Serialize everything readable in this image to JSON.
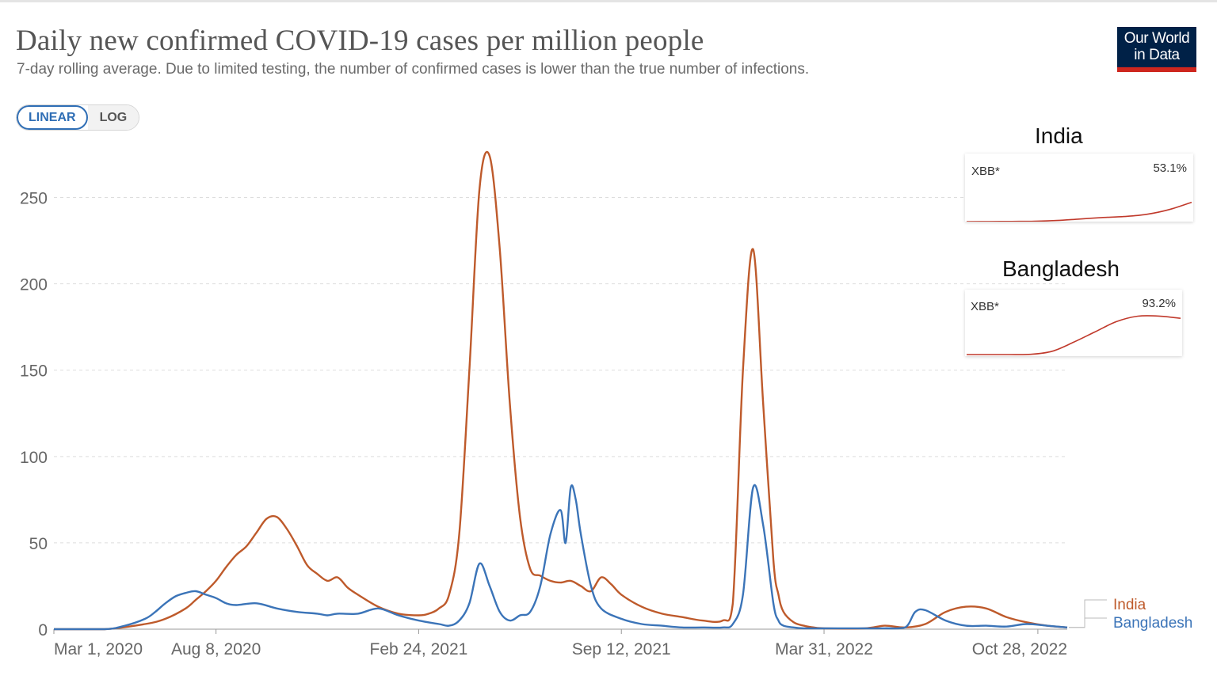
{
  "header": {
    "title": "Daily new confirmed COVID-19 cases per million people",
    "subtitle": "7-day rolling average. Due to limited testing, the number of confirmed cases is lower than the true number of infections.",
    "logo_line1": "Our World",
    "logo_line2": "in Data"
  },
  "scale_toggle": {
    "linear_label": "LINEAR",
    "log_label": "LOG",
    "selected": "LINEAR"
  },
  "colors": {
    "india": "#be5a2b",
    "bangladesh": "#3b74b8",
    "inset_line": "#c0392b",
    "logo_bg": "#002147",
    "logo_bar": "#ce261e"
  },
  "insets": [
    {
      "title": "India",
      "variant_label": "XBB*",
      "value_label": "53.1%",
      "share": [
        0,
        0.2,
        0.5,
        1,
        3,
        7,
        11,
        14,
        20,
        33,
        53.1
      ]
    },
    {
      "title": "Bangladesh",
      "variant_label": "XBB*",
      "value_label": "93.2%",
      "share": [
        0,
        0,
        0,
        0.5,
        8,
        30,
        55,
        80,
        93.2,
        93.5,
        88
      ]
    }
  ],
  "chart_data": {
    "type": "line",
    "title": "Daily new confirmed COVID-19 cases per million people",
    "ylabel": "",
    "xlabel": "",
    "ylim": [
      0,
      275
    ],
    "xlim": [
      0,
      1000
    ],
    "x_unit": "days since Mar 1, 2020",
    "yticks": [
      0,
      50,
      100,
      150,
      200,
      250
    ],
    "ytick_labels": [
      "0",
      "50",
      "100",
      "150",
      "200",
      "250"
    ],
    "xticks": [
      0,
      160,
      360,
      560,
      760,
      971
    ],
    "xtick_labels": [
      "Mar 1, 2020",
      "Aug 8, 2020",
      "Feb 24, 2021",
      "Sep 12, 2021",
      "Mar 31, 2022",
      "Oct 28, 2022"
    ],
    "grid": true,
    "legend": "right-end",
    "series": [
      {
        "name": "India",
        "x": [
          0,
          50,
          90,
          110,
          130,
          140,
          150,
          160,
          170,
          180,
          190,
          200,
          210,
          220,
          230,
          240,
          250,
          260,
          270,
          280,
          290,
          300,
          320,
          340,
          360,
          370,
          380,
          390,
          400,
          410,
          420,
          430,
          440,
          450,
          460,
          470,
          480,
          490,
          500,
          510,
          520,
          530,
          540,
          550,
          560,
          580,
          600,
          620,
          640,
          660,
          670,
          680,
          690,
          700,
          710,
          715,
          720,
          730,
          740,
          750,
          760,
          800,
          820,
          840,
          860,
          880,
          900,
          920,
          940,
          960,
          980,
          1000
        ],
        "y": [
          0,
          0,
          3,
          6,
          12,
          17,
          22,
          28,
          36,
          43,
          48,
          56,
          64,
          65,
          58,
          48,
          37,
          32,
          28,
          30,
          24,
          20,
          13,
          9,
          8,
          9,
          12,
          20,
          55,
          150,
          255,
          274,
          220,
          130,
          65,
          35,
          31,
          28,
          27,
          28,
          25,
          22,
          30,
          26,
          20,
          13,
          9,
          7,
          5,
          5,
          15,
          150,
          220,
          130,
          40,
          20,
          10,
          4,
          2,
          1,
          0.5,
          0.5,
          2,
          1,
          3,
          10,
          13,
          12,
          7,
          4,
          2,
          1
        ]
      },
      {
        "name": "Bangladesh",
        "x": [
          0,
          50,
          70,
          90,
          100,
          110,
          120,
          130,
          140,
          150,
          160,
          170,
          180,
          200,
          220,
          240,
          260,
          270,
          280,
          300,
          320,
          340,
          360,
          380,
          390,
          400,
          410,
          420,
          430,
          440,
          450,
          460,
          470,
          480,
          490,
          500,
          505,
          510,
          515,
          520,
          530,
          540,
          560,
          580,
          600,
          620,
          640,
          660,
          670,
          680,
          690,
          700,
          710,
          715,
          720,
          730,
          740,
          760,
          800,
          820,
          840,
          850,
          860,
          880,
          900,
          920,
          940,
          960,
          980,
          1000
        ],
        "y": [
          0,
          0,
          2,
          6,
          10,
          15,
          19,
          21,
          22,
          20,
          18,
          15,
          14,
          15,
          12,
          10,
          9,
          8,
          9,
          9,
          12,
          8,
          5,
          3,
          2,
          5,
          15,
          38,
          25,
          10,
          5,
          8,
          10,
          25,
          55,
          69,
          50,
          82,
          75,
          55,
          25,
          12,
          6,
          3,
          2,
          1,
          1,
          1,
          3,
          20,
          82,
          60,
          15,
          5,
          2,
          1,
          0.5,
          0.5,
          0.5,
          0.5,
          1,
          10,
          11,
          5,
          2,
          2,
          1.5,
          3,
          2,
          1
        ]
      }
    ]
  }
}
